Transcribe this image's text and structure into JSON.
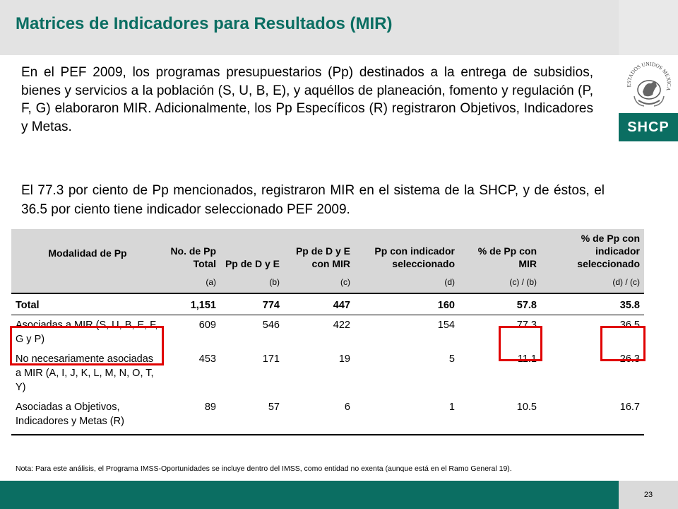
{
  "header": {
    "title": "Matrices de Indicadores para Resultados (MIR)"
  },
  "logo": {
    "seal_text": "ESTADOS UNIDOS MEXICANOS",
    "badge": "SHCP"
  },
  "body": {
    "paragraph_1": "En el PEF 2009, los programas presupuestarios (Pp) destinados a la entrega de subsidios, bienes y servicios a la población (S, U, B, E), y aquéllos de planeación, fomento y regulación (P, F, G) elaboraron MIR. Adicionalmente, los Pp Específicos (R) registraron Objetivos, Indicadores y Metas.",
    "paragraph_2": "El 77.3 por ciento de Pp mencionados, registraron MIR en el sistema de la SHCP, y de éstos, el 36.5 por ciento tiene indicador seleccionado PEF 2009."
  },
  "table": {
    "headers": [
      "Modalidad de Pp",
      "No. de Pp Total",
      "Pp de D y E",
      "Pp de D y E con MIR",
      "Pp con indicador seleccionado",
      "% de Pp con MIR",
      "% de Pp con indicador seleccionado"
    ],
    "codes": [
      "",
      "(a)",
      "(b)",
      "(c)",
      "(d)",
      "(c) / (b)",
      "(d) / (c)"
    ],
    "rows": [
      [
        "Total",
        "1,151",
        "774",
        "447",
        "160",
        "57.8",
        "35.8"
      ],
      [
        "Asociadas a MIR (S, U, B, E, F, G y P)",
        "609",
        "546",
        "422",
        "154",
        "77.3",
        "36.5"
      ],
      [
        "No necesariamente asociadas a MIR (A, I, J, K, L, M, N, O, T, Y)",
        "453",
        "171",
        "19",
        "5",
        "11.1",
        "26.3"
      ],
      [
        "Asociadas a Objetivos, Indicadores y Metas (R)",
        "89",
        "57",
        "6",
        "1",
        "10.5",
        "16.7"
      ]
    ]
  },
  "note": "Nota: Para este análisis, el Programa IMSS-Oportunidades se incluye dentro del IMSS, como entidad no exenta (aunque está en el Ramo General 19).",
  "footer": {
    "page_number": "23"
  },
  "colors": {
    "brand_green": "#0b6e62",
    "highlight_red": "#e00000"
  }
}
